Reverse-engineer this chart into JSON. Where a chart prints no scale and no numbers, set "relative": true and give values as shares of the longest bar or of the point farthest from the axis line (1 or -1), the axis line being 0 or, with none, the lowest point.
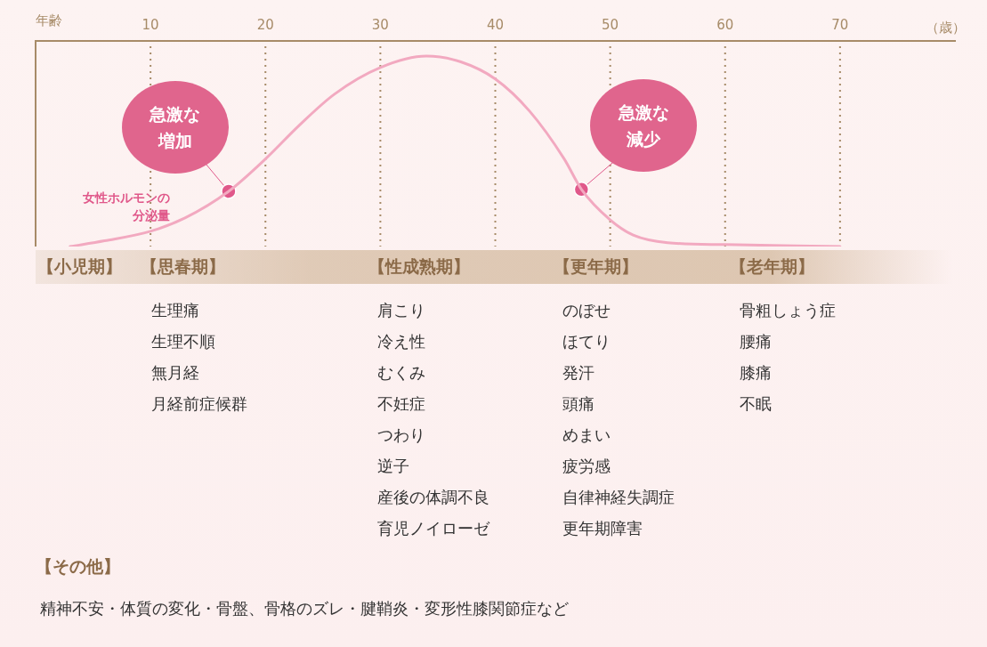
{
  "chart_data": {
    "type": "line",
    "relative": true,
    "xlabel": "年齢",
    "xlim": [
      0,
      80
    ],
    "xticks": [
      10,
      20,
      30,
      40,
      50,
      60,
      70
    ],
    "grid": "x",
    "legend": false,
    "series": [
      {
        "name": "女性ホルモンの分泌量",
        "type": "line",
        "color": "#f2a9c0",
        "marker": "none",
        "x": [
          3,
          6,
          10,
          13,
          16.8,
          20,
          23,
          26,
          30,
          34,
          37,
          40,
          43,
          46,
          47.5,
          50,
          52,
          55,
          60,
          70
        ],
        "values": [
          0,
          0.03,
          0.08,
          0.15,
          0.29,
          0.46,
          0.64,
          0.8,
          0.94,
          1,
          0.97,
          0.88,
          0.71,
          0.46,
          0.3,
          0.14,
          0.06,
          0.02,
          0.01,
          0
        ]
      },
      {
        "type": "scatter",
        "color": "#e0588a",
        "marker": "circle",
        "x": [
          16.8,
          47.5
        ],
        "values": [
          0.29,
          0.3
        ]
      }
    ],
    "annotations": [
      {
        "text": "急激な増加",
        "x": 16.8,
        "y": 0.29
      },
      {
        "text": "急激な減少",
        "x": 47.5,
        "y": 0.3
      },
      "（歳）",
      "【小児期】",
      "【思春期】",
      "【性成熟期】",
      "【更年期】",
      "【老年期】",
      "生理痛",
      "生理不順",
      "無月経",
      "月経前症候群",
      "肩こり",
      "冷え性",
      "むくみ",
      "不妊症",
      "つわり",
      "逆子",
      "産後の体調不良",
      "育児ノイローゼ",
      "のぼせ",
      "ほてり",
      "発汗",
      "頭痛",
      "めまい",
      "疲労感",
      "自律神経失調症",
      "更年期障害",
      "骨粗しょう症",
      "腰痛",
      "膝痛",
      "不眠",
      "【その他】",
      "精神不安・体質の変化・骨盤、骨格のズレ・腱鞘炎・変形性膝関節症など"
    ]
  }
}
